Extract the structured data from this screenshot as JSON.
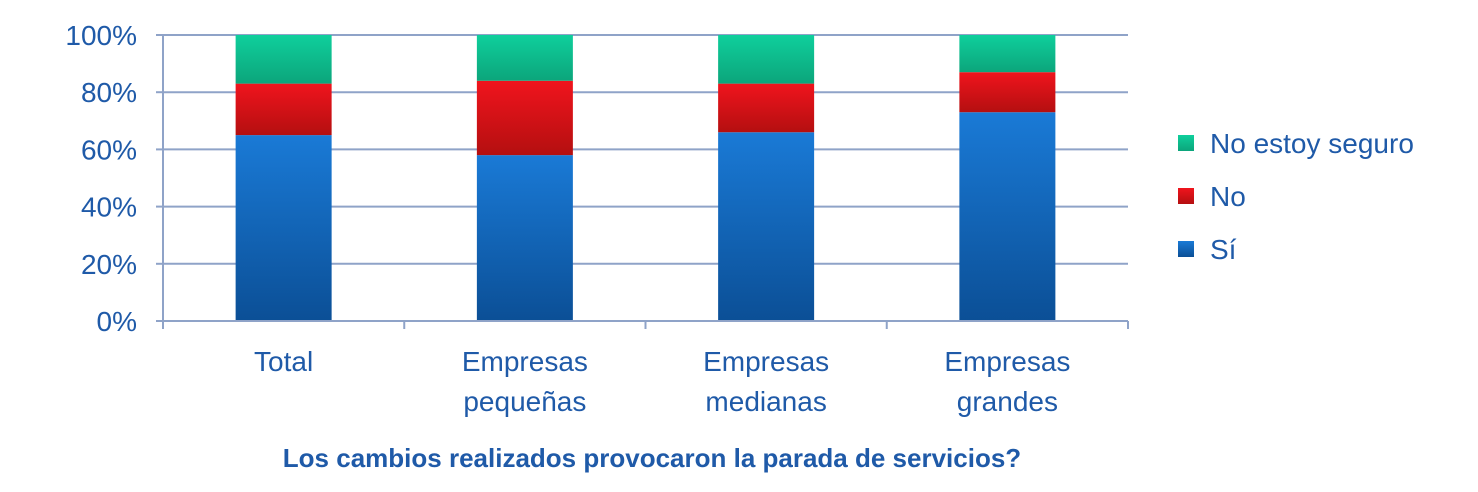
{
  "chart_data": {
    "type": "bar",
    "stacked": true,
    "normalized": true,
    "title": "Los cambios realizados provocaron la parada de servicios?",
    "categories": [
      [
        "Total"
      ],
      [
        "Empresas",
        "pequeñas"
      ],
      [
        "Empresas",
        "medianas"
      ],
      [
        "Empresas",
        "grandes"
      ]
    ],
    "series": [
      {
        "name": "Sí",
        "key": "si",
        "values": [
          65,
          58,
          66,
          73
        ]
      },
      {
        "name": "No",
        "key": "no",
        "values": [
          18,
          26,
          17,
          14
        ]
      },
      {
        "name": "No estoy seguro",
        "key": "ns",
        "values": [
          17,
          16,
          17,
          13
        ]
      }
    ],
    "ylim": [
      0,
      100
    ],
    "yticks": [
      "0%",
      "20%",
      "40%",
      "60%",
      "80%",
      "100%"
    ],
    "grid": true,
    "legend_position": "right",
    "legend_order": [
      "No estoy seguro",
      "No",
      "Sí"
    ],
    "colors": {
      "si_top": "#1a7ad6",
      "si_bottom": "#0b4f96",
      "no_top": "#f0141d",
      "no_bottom": "#b40f10",
      "ns_top": "#0fcf9c",
      "ns_bottom": "#0ca57b",
      "text": "#1f5aa8",
      "title": "#1f5aa8",
      "grid": "#8fa3c8",
      "axis": "#8fa3c8"
    }
  }
}
